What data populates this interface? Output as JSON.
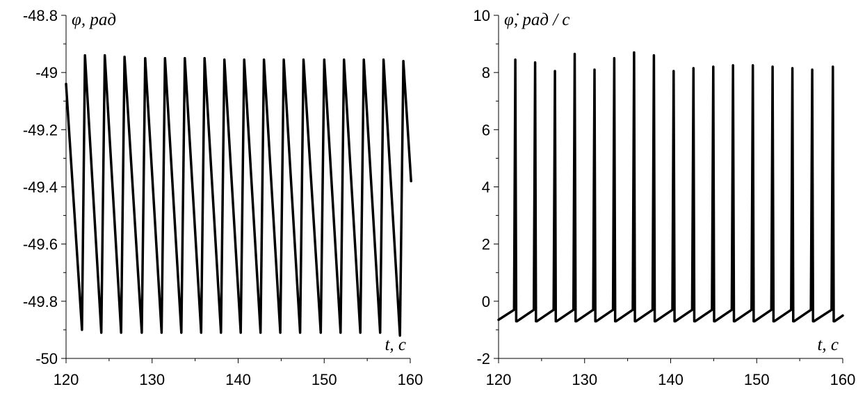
{
  "chart_data": [
    {
      "type": "line",
      "title": "",
      "xlabel": "t, c",
      "ylabel": "φ, рад",
      "xlim": [
        120,
        160
      ],
      "ylim": [
        -50,
        -48.8
      ],
      "x_ticks": [
        "120",
        "130",
        "140",
        "150",
        "160"
      ],
      "y_ticks": [
        "-50",
        "-49.8",
        "-49.6",
        "-49.4",
        "-49.2",
        "-49",
        "-48.8"
      ],
      "grid": false,
      "series": [
        {
          "x": [
            120.0,
            121.85,
            122.2,
            124.1,
            124.5,
            126.4,
            126.8,
            128.8,
            129.2,
            131.1,
            131.5,
            133.4,
            133.8,
            135.7,
            136.1,
            138.0,
            138.4,
            140.3,
            140.7,
            142.6,
            143.0,
            144.9,
            145.3,
            147.2,
            147.6,
            149.6,
            150.0,
            151.9,
            152.3,
            154.2,
            154.6,
            156.5,
            156.9,
            158.8,
            159.2,
            160.1
          ],
          "y": [
            -49.04,
            -49.9,
            -48.94,
            -49.91,
            -48.94,
            -49.91,
            -48.945,
            -49.91,
            -48.95,
            -49.91,
            -48.95,
            -49.91,
            -48.95,
            -49.91,
            -48.95,
            -49.91,
            -48.955,
            -49.91,
            -48.955,
            -49.91,
            -48.955,
            -49.91,
            -48.955,
            -49.91,
            -48.955,
            -49.91,
            -48.955,
            -49.91,
            -48.955,
            -49.91,
            -48.955,
            -49.91,
            -48.955,
            -49.92,
            -48.96,
            -49.38
          ]
        }
      ]
    },
    {
      "type": "line",
      "title": "",
      "xlabel": "t, c",
      "ylabel": "φ̇, рад / с",
      "xlim": [
        120,
        160
      ],
      "ylim": [
        -2,
        10
      ],
      "x_ticks": [
        "120",
        "130",
        "140",
        "150",
        "160"
      ],
      "y_ticks": [
        "-2",
        "0",
        "2",
        "4",
        "6",
        "8",
        "10"
      ],
      "grid": false,
      "series": [
        {
          "x": [
            120.0,
            121.8,
            121.95,
            122.05,
            122.15,
            124.1,
            124.25,
            124.35,
            124.45,
            126.4,
            126.55,
            126.65,
            126.75,
            128.7,
            128.85,
            128.95,
            129.05,
            131.0,
            131.15,
            131.25,
            131.35,
            133.3,
            133.45,
            133.55,
            133.65,
            135.6,
            135.75,
            135.85,
            135.95,
            137.9,
            138.05,
            138.15,
            138.25,
            140.2,
            140.35,
            140.45,
            140.55,
            142.5,
            142.65,
            142.75,
            142.85,
            144.8,
            144.95,
            145.05,
            145.15,
            147.1,
            147.25,
            147.35,
            147.45,
            149.4,
            149.55,
            149.65,
            149.75,
            151.7,
            151.85,
            151.95,
            152.05,
            154.0,
            154.15,
            154.25,
            154.35,
            156.3,
            156.45,
            156.55,
            156.65,
            158.7,
            158.85,
            158.95,
            159.05,
            160.0
          ],
          "y": [
            -0.65,
            -0.3,
            8.45,
            -0.7,
            -0.7,
            -0.3,
            8.35,
            -0.7,
            -0.7,
            -0.3,
            8.05,
            -0.7,
            -0.7,
            -0.3,
            8.65,
            -0.7,
            -0.7,
            -0.3,
            8.1,
            -0.7,
            -0.7,
            -0.3,
            8.5,
            -0.7,
            -0.7,
            -0.3,
            8.7,
            -0.7,
            -0.7,
            -0.3,
            8.6,
            -0.7,
            -0.7,
            -0.3,
            8.05,
            -0.7,
            -0.7,
            -0.3,
            8.15,
            -0.7,
            -0.7,
            -0.3,
            8.2,
            -0.7,
            -0.7,
            -0.3,
            8.25,
            -0.7,
            -0.7,
            -0.3,
            8.25,
            -0.7,
            -0.7,
            -0.3,
            8.2,
            -0.7,
            -0.7,
            -0.3,
            8.15,
            -0.7,
            -0.7,
            -0.3,
            8.1,
            -0.7,
            -0.7,
            -0.3,
            8.2,
            -0.7,
            -0.7,
            -0.5
          ]
        }
      ]
    }
  ]
}
